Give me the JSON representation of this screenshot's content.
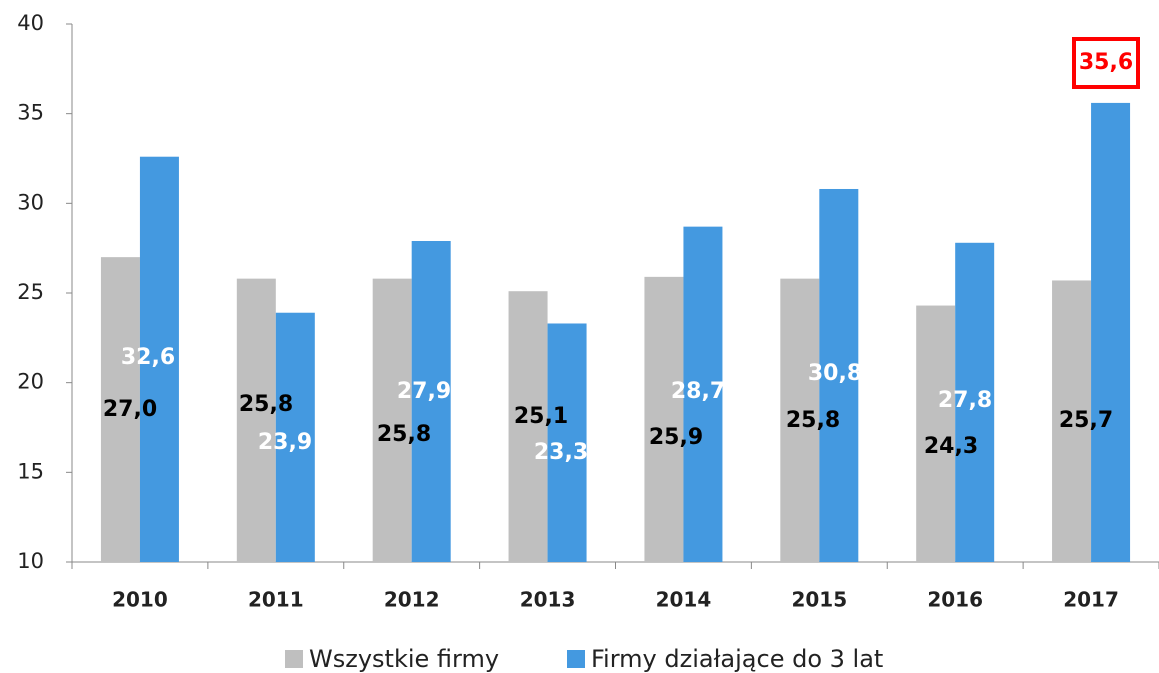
{
  "chart_data": {
    "type": "bar",
    "categories": [
      "2010",
      "2011",
      "2012",
      "2013",
      "2014",
      "2015",
      "2016",
      "2017"
    ],
    "series": [
      {
        "name": "Wszystkie firmy",
        "color": "#bfbfbf",
        "values": [
          27.0,
          25.8,
          25.8,
          25.1,
          25.9,
          25.8,
          24.3,
          25.7
        ],
        "value_labels": [
          "27,0",
          "25,8",
          "25,8",
          "25,1",
          "25,9",
          "25,8",
          "24,3",
          "25,7"
        ]
      },
      {
        "name": "Firmy działające do 3 lat",
        "color": "#4499e0",
        "values": [
          32.6,
          23.9,
          27.9,
          23.3,
          28.7,
          30.8,
          27.8,
          35.6
        ],
        "value_labels": [
          "32,6",
          "23,9",
          "27,9",
          "23,3",
          "28,7",
          "30,8",
          "27,8",
          "35,6"
        ]
      }
    ],
    "ylim": [
      10,
      40
    ],
    "yticks": [
      10,
      15,
      20,
      25,
      30,
      35,
      40
    ],
    "grid": false
  }
}
